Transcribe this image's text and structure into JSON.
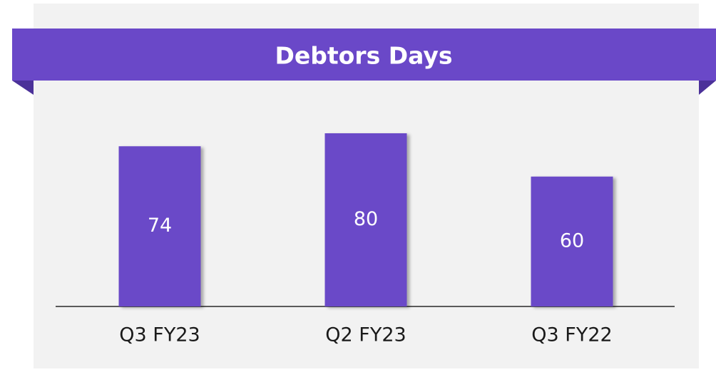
{
  "chart_data": {
    "type": "bar",
    "title": "Debtors Days",
    "categories": [
      "Q3 FY23",
      "Q2 FY23",
      "Q3 FY22"
    ],
    "values": [
      74,
      80,
      60
    ],
    "color": "#6a48c8"
  }
}
